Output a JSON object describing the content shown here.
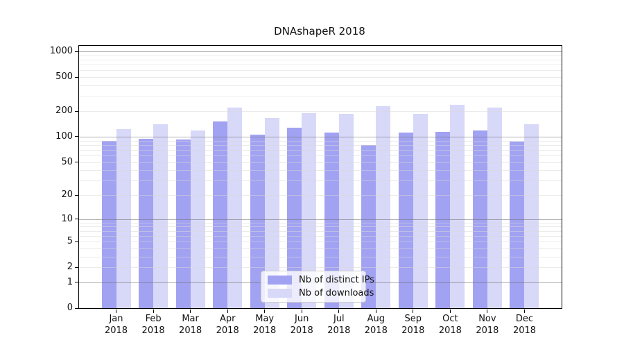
{
  "chart_data": {
    "type": "bar",
    "title": "DNAshapeR 2018",
    "categories": [
      "Jan",
      "Feb",
      "Mar",
      "Apr",
      "May",
      "Jun",
      "Jul",
      "Aug",
      "Sep",
      "Oct",
      "Nov",
      "Dec"
    ],
    "year_label": "2018",
    "series": [
      {
        "name": "Nb of distinct IPs",
        "color": "#a2a2f2",
        "values": [
          89,
          94,
          93,
          150,
          106,
          128,
          111,
          80,
          112,
          113,
          119,
          87
        ]
      },
      {
        "name": "Nb of downloads",
        "color": "#d8d8f8",
        "values": [
          123,
          140,
          118,
          221,
          166,
          190,
          185,
          228,
          187,
          239,
          222,
          140
        ]
      }
    ],
    "y_scale": "log1p",
    "y_ticks": [
      0,
      1,
      2,
      5,
      10,
      20,
      50,
      100,
      200,
      500,
      1000
    ],
    "y_major_gridlines": [
      1,
      10,
      100,
      1000
    ],
    "ylim_top_approx": 1170,
    "grid": true,
    "legend_position": "lower center",
    "axis_color": "#000000",
    "major_grid_color": "#a8a8a8",
    "minor_grid_color": "#ebebeb"
  }
}
